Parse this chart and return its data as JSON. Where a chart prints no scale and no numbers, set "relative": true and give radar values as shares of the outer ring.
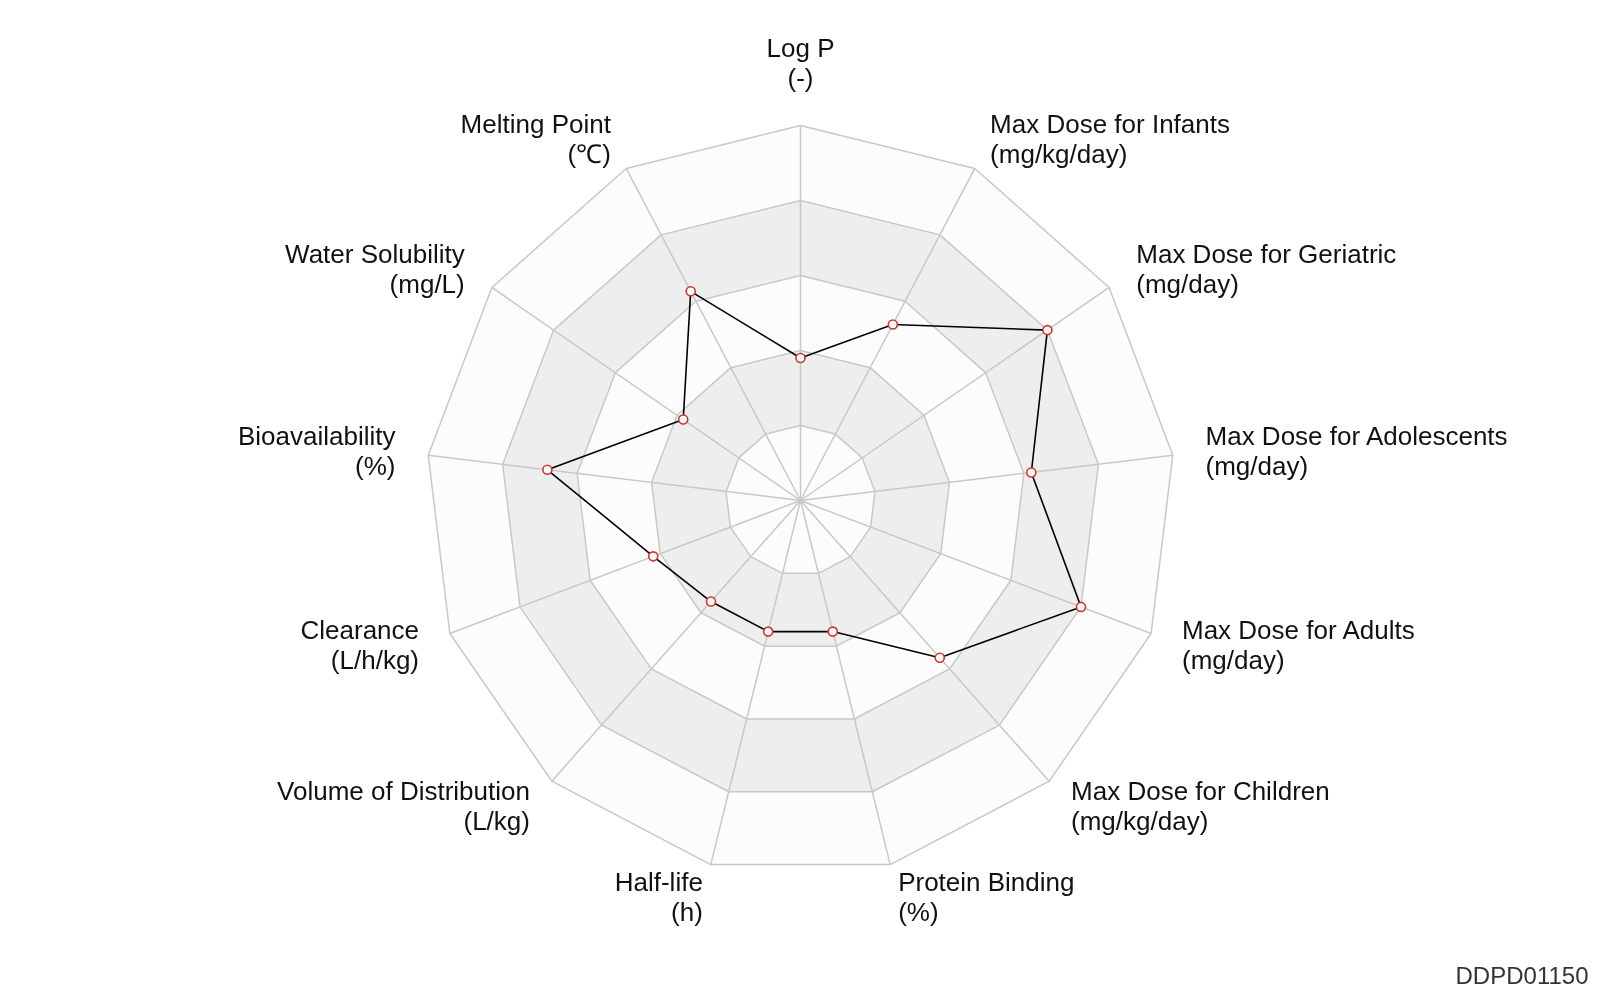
{
  "chart_data": {
    "type": "radar",
    "relative": true,
    "grid": true,
    "marker": "circle",
    "categories": [
      "Log P\n(-)",
      "Max Dose for Infants\n(mg/kg/day)",
      "Max Dose for Geriatric\n(mg/day)",
      "Max Dose for Adolescents\n(mg/day)",
      "Max Dose for Adults\n(mg/day)",
      "Max Dose for Children\n(mg/kg/day)",
      "Protein Binding\n(%)",
      "Half-life\n(h)",
      "Volume of Distribution\n(L/kg)",
      "Clearance\n(L/h/kg)",
      "Bioavailability\n(%)",
      "Water Solubility\n(mg/L)",
      "Melting Point\n(℃)"
    ],
    "series": [
      {
        "color": "#000000",
        "values": [
          0.38,
          0.53,
          0.8,
          0.62,
          0.8,
          0.56,
          0.36,
          0.36,
          0.36,
          0.42,
          0.68,
          0.38,
          0.63
        ]
      }
    ],
    "annotations": [
      "DDPD01150"
    ]
  }
}
